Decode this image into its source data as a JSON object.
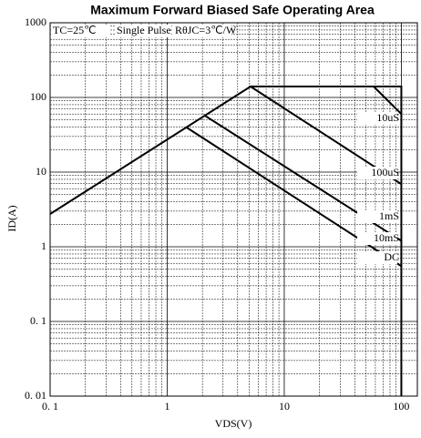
{
  "chart_data": {
    "type": "line",
    "title": "Maximum Forward Biased Safe Operating Area",
    "xlabel": "VDS(V)",
    "ylabel": "ID(A)",
    "annotations": [
      "TC=25℃",
      "Single Pulse",
      "RθJC=3℃/W"
    ],
    "log_x": true,
    "log_y": true,
    "grid": true,
    "minor_grid": true,
    "xlim": [
      0.1,
      137
    ],
    "ylim": [
      0.01,
      1000
    ],
    "xticks": [
      {
        "value": 0.1,
        "label": "0. 1"
      },
      1,
      10,
      100
    ],
    "yticks": [
      {
        "value": 0.01,
        "label": "0. 01"
      },
      {
        "value": 0.1,
        "label": "0. 1"
      },
      1,
      10,
      100,
      1000
    ],
    "series": [
      {
        "name": "10uS",
        "color": "#000000",
        "x": [
          58,
          100
        ],
        "values": [
          140,
          60
        ]
      },
      {
        "name": "100uS",
        "color": "#000000",
        "x": [
          5.15,
          100
        ],
        "values": [
          140,
          6.9
        ]
      },
      {
        "name": "1mS",
        "color": "#000000",
        "x": [
          2.1,
          100
        ],
        "values": [
          57,
          1.2
        ]
      },
      {
        "name": "10mS",
        "color": "#000000",
        "x": [
          1.45,
          100
        ],
        "values": [
          40,
          0.55
        ]
      },
      {
        "name": "DC",
        "color": "#000000",
        "x": [
          0.1,
          5.15,
          100,
          100
        ],
        "values": [
          2.75,
          140,
          140,
          0.01
        ]
      }
    ]
  }
}
